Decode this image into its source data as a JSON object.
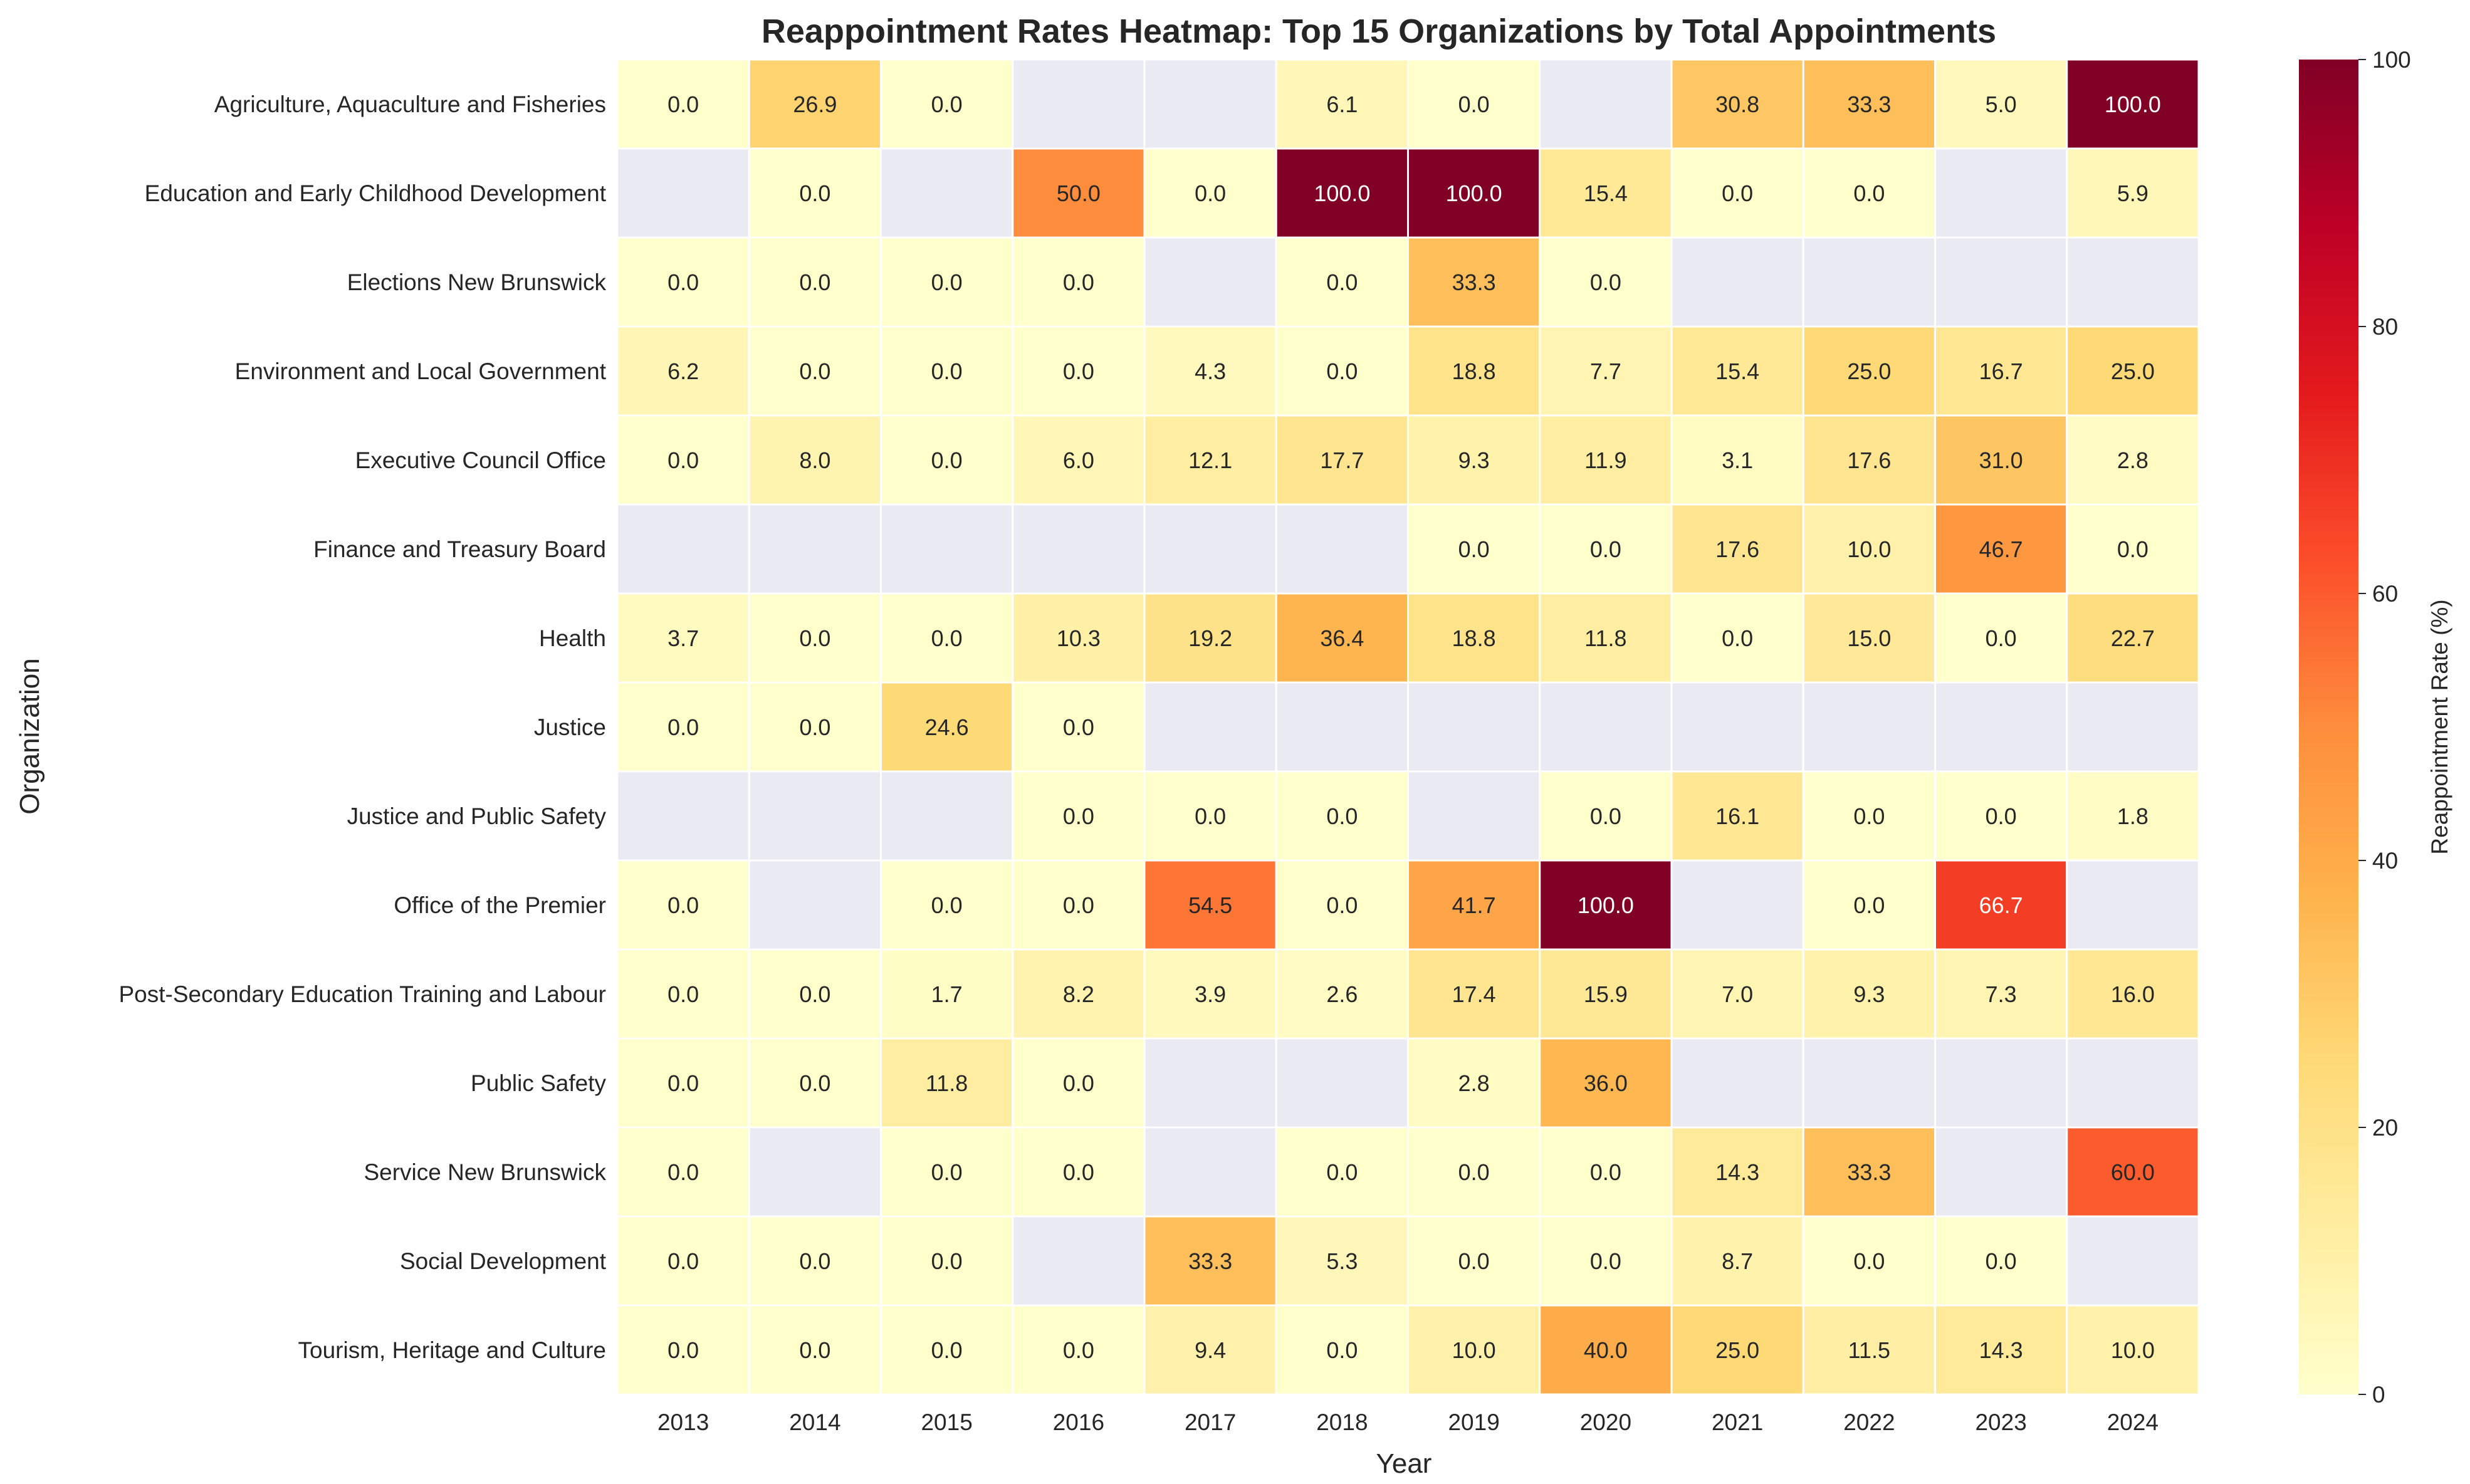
{
  "chart_data": {
    "type": "heatmap",
    "title": "Reappointment Rates Heatmap: Top 15 Organizations by Total Appointments",
    "xlabel": "Year",
    "ylabel": "Organization",
    "colorbar_label": "Reappointment Rate (%)",
    "colorbar_ticks": [
      "0",
      "20",
      "40",
      "60",
      "80",
      "100"
    ],
    "color_range": [
      0,
      100
    ],
    "colormap": [
      "#ffffcc",
      "#ffeda0",
      "#fed976",
      "#feb24c",
      "#fd8d3c",
      "#fc4e2a",
      "#e31a1c",
      "#bd0026",
      "#800026"
    ],
    "missing_color": "#eaeaf2",
    "years": [
      "2013",
      "2014",
      "2015",
      "2016",
      "2017",
      "2018",
      "2019",
      "2020",
      "2021",
      "2022",
      "2023",
      "2024"
    ],
    "organizations": [
      "Agriculture, Aquaculture and Fisheries",
      "Education and Early Childhood Development",
      "Elections New Brunswick",
      "Environment and Local Government",
      "Executive Council Office",
      "Finance and Treasury Board",
      "Health",
      "Justice",
      "Justice and Public Safety",
      "Office of the Premier",
      "Post-Secondary Education Training and Labour",
      "Public Safety",
      "Service New Brunswick",
      "Social Development",
      "Tourism, Heritage and Culture"
    ],
    "values": [
      [
        0.0,
        26.9,
        0.0,
        null,
        null,
        6.1,
        0.0,
        null,
        30.8,
        33.3,
        5.0,
        100.0
      ],
      [
        null,
        0.0,
        null,
        50.0,
        0.0,
        100.0,
        100.0,
        15.4,
        0.0,
        0.0,
        null,
        5.9
      ],
      [
        0.0,
        0.0,
        0.0,
        0.0,
        null,
        0.0,
        33.3,
        0.0,
        null,
        null,
        null,
        null
      ],
      [
        6.2,
        0.0,
        0.0,
        0.0,
        4.3,
        0.0,
        18.8,
        7.7,
        15.4,
        25.0,
        16.7,
        25.0
      ],
      [
        0.0,
        8.0,
        0.0,
        6.0,
        12.1,
        17.7,
        9.3,
        11.9,
        3.1,
        17.6,
        31.0,
        2.8
      ],
      [
        null,
        null,
        null,
        null,
        null,
        null,
        0.0,
        0.0,
        17.6,
        10.0,
        46.7,
        0.0
      ],
      [
        3.7,
        0.0,
        0.0,
        10.3,
        19.2,
        36.4,
        18.8,
        11.8,
        0.0,
        15.0,
        0.0,
        22.7
      ],
      [
        0.0,
        0.0,
        24.6,
        0.0,
        null,
        null,
        null,
        null,
        null,
        null,
        null,
        null
      ],
      [
        null,
        null,
        null,
        0.0,
        0.0,
        0.0,
        null,
        0.0,
        16.1,
        0.0,
        0.0,
        1.8
      ],
      [
        0.0,
        null,
        0.0,
        0.0,
        54.5,
        0.0,
        41.7,
        100.0,
        null,
        0.0,
        66.7,
        null
      ],
      [
        0.0,
        0.0,
        1.7,
        8.2,
        3.9,
        2.6,
        17.4,
        15.9,
        7.0,
        9.3,
        7.3,
        16.0
      ],
      [
        0.0,
        0.0,
        11.8,
        0.0,
        null,
        null,
        2.8,
        36.0,
        null,
        null,
        null,
        null
      ],
      [
        0.0,
        null,
        0.0,
        0.0,
        null,
        0.0,
        0.0,
        0.0,
        14.3,
        33.3,
        null,
        60.0
      ],
      [
        0.0,
        0.0,
        0.0,
        null,
        33.3,
        5.3,
        0.0,
        0.0,
        8.7,
        0.0,
        0.0,
        null
      ],
      [
        0.0,
        0.0,
        0.0,
        0.0,
        9.4,
        0.0,
        10.0,
        40.0,
        25.0,
        11.5,
        14.3,
        10.0
      ]
    ]
  }
}
